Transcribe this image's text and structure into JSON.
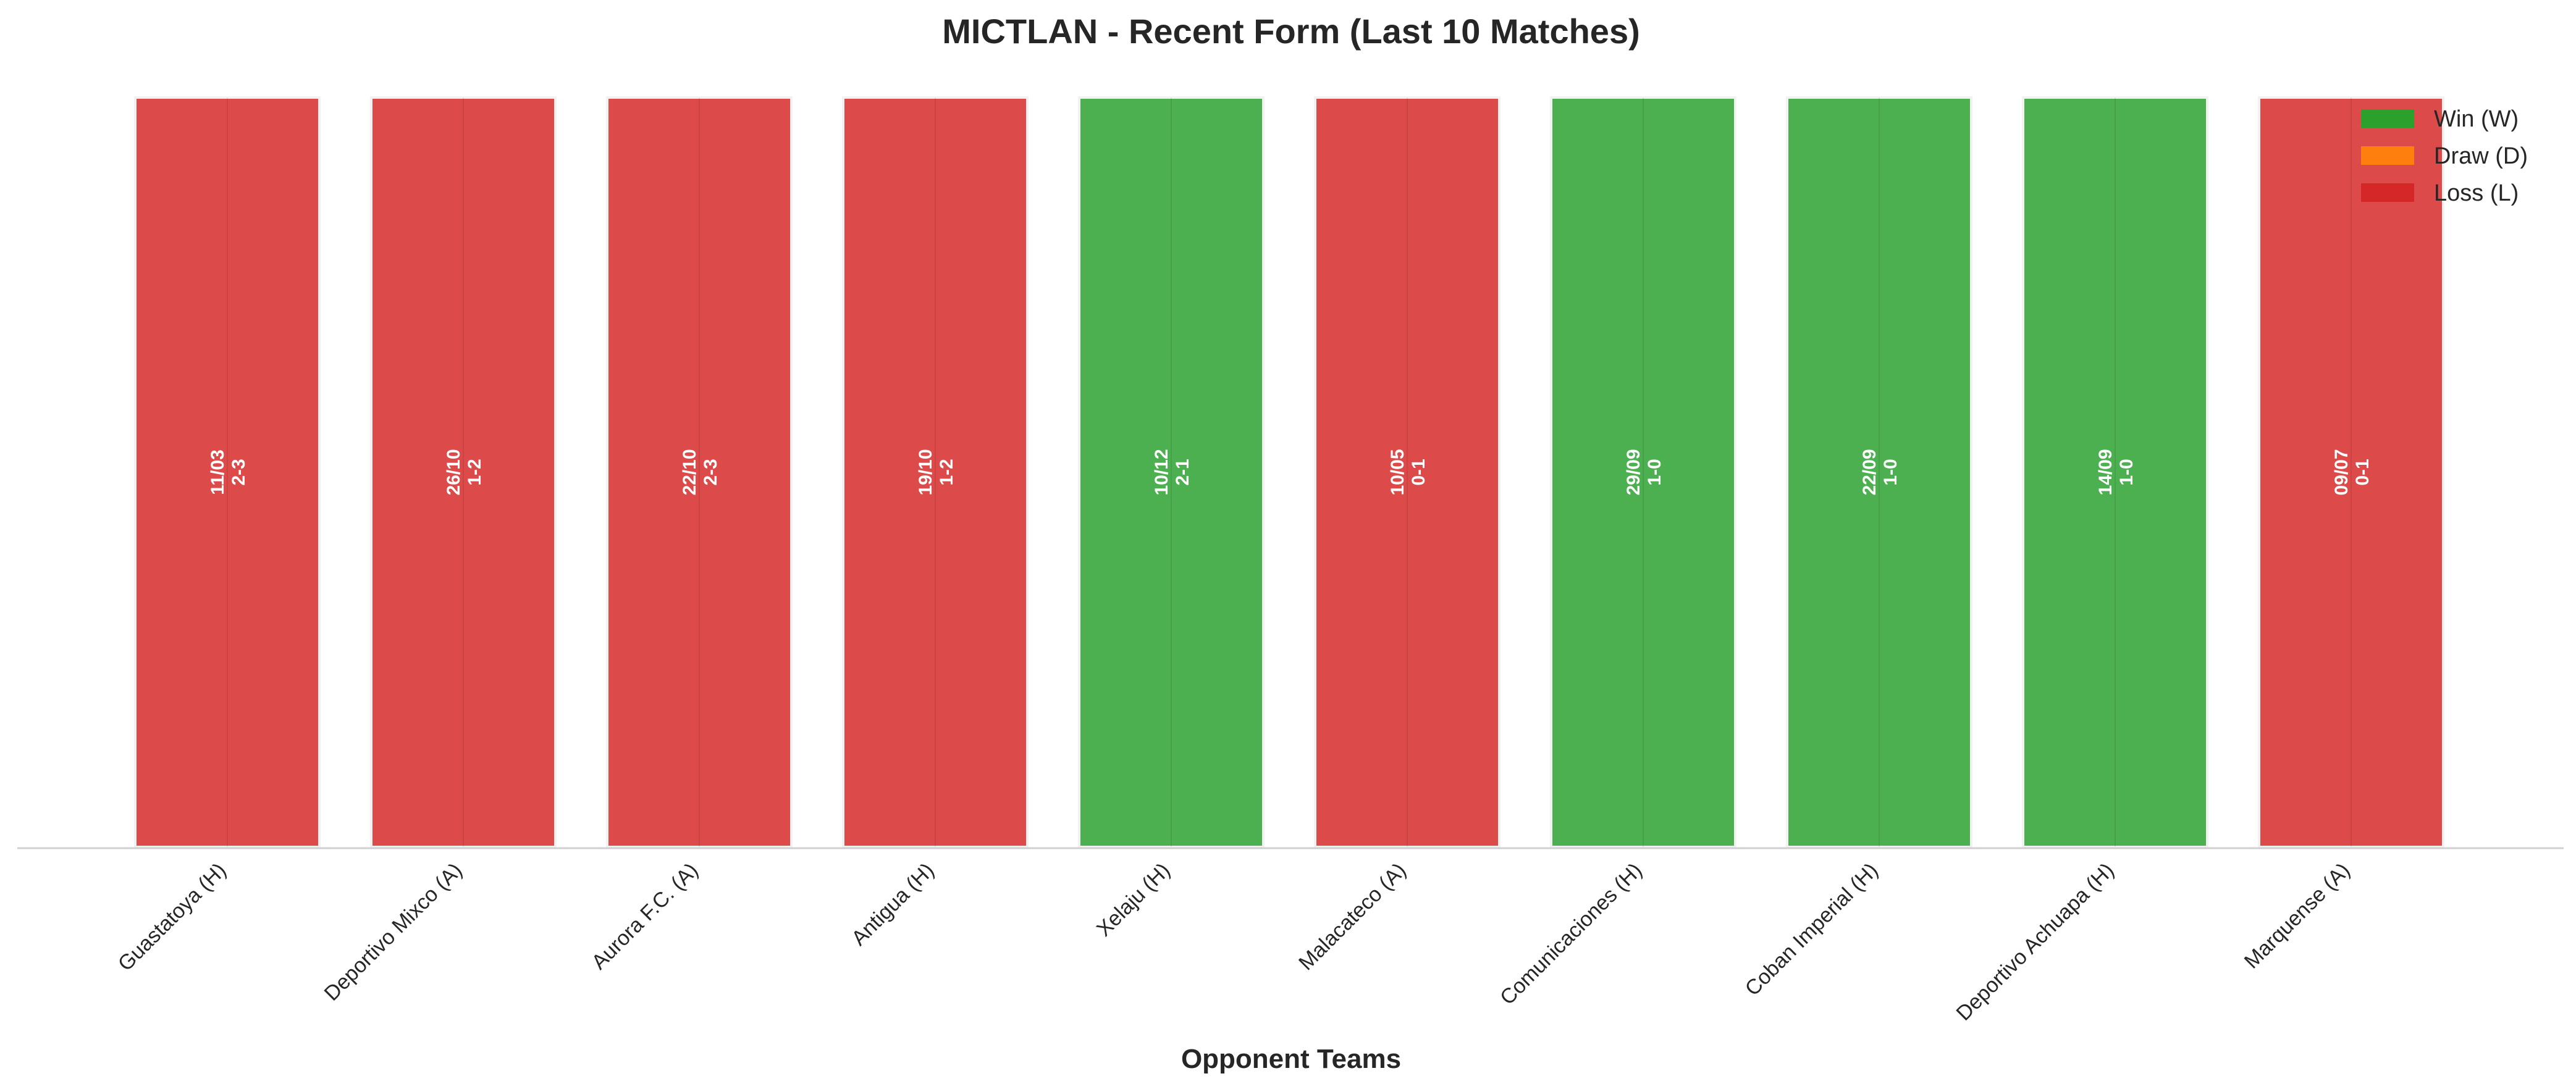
{
  "chart_data": {
    "type": "bar",
    "title": "MICTLAN - Recent Form (Last 10 Matches)",
    "xlabel": "Opponent Teams",
    "ylabel": "",
    "ylim": [
      0,
      1
    ],
    "grid": false,
    "categories": [
      "Guastatoya (H)",
      "Deportivo Mixco (A)",
      "Aurora F.C. (A)",
      "Antigua (H)",
      "Xelaju (H)",
      "Malacateco (A)",
      "Comunicaciones (H)",
      "Coban Imperial (H)",
      "Deportivo Achuapa (H)",
      "Marquense (A)"
    ],
    "values": [
      1,
      1,
      1,
      1,
      1,
      1,
      1,
      1,
      1,
      1
    ],
    "results": [
      "L",
      "L",
      "L",
      "L",
      "W",
      "L",
      "W",
      "W",
      "W",
      "L"
    ],
    "dates": [
      "11/03",
      "26/10",
      "22/10",
      "19/10",
      "10/12",
      "10/05",
      "29/09",
      "22/09",
      "14/09",
      "09/07"
    ],
    "scores": [
      "2-3",
      "1-2",
      "2-3",
      "1-2",
      "2-1",
      "0-1",
      "1-0",
      "1-0",
      "1-0",
      "0-1"
    ],
    "legend": {
      "placement": "top-right",
      "entries": [
        {
          "key": "W",
          "label": "Win (W)",
          "color": "#2ca02c"
        },
        {
          "key": "D",
          "label": "Draw (D)",
          "color": "#ff7f0e"
        },
        {
          "key": "L",
          "label": "Loss (L)",
          "color": "#d62728"
        }
      ]
    },
    "colors": {
      "W": "#4caf50",
      "D": "#ff7f0e",
      "L": "#dc4a4a"
    }
  }
}
